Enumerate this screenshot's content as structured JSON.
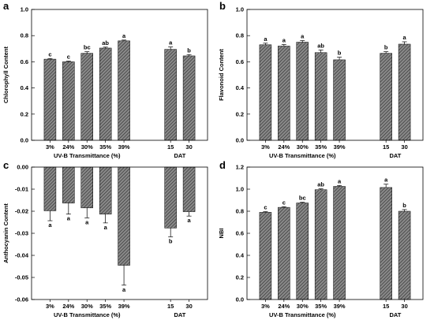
{
  "chart_data": [
    {
      "panel": "a",
      "type": "bar",
      "categories": [
        "3%",
        "24%",
        "30%",
        "35%",
        "39%",
        "15",
        "30"
      ],
      "values": [
        0.62,
        0.6,
        0.665,
        0.705,
        0.76,
        0.695,
        0.645
      ],
      "errors": [
        0.005,
        0.005,
        0.012,
        0.007,
        0.006,
        0.018,
        0.01
      ],
      "letters": [
        "c",
        "c",
        "bc",
        "ab",
        "a",
        "a",
        "b"
      ],
      "ylabel": "Chlorophyll Content",
      "ylim": [
        0.0,
        1.0
      ],
      "yticks": [
        "0.0",
        "0.2",
        "0.4",
        "0.6",
        "0.8",
        "1.0"
      ],
      "ytick_values": [
        0,
        0.2,
        0.4,
        0.6,
        0.8,
        1.0
      ],
      "xgroup_labels": [
        "UV-B Transmittance (%)",
        "DAT"
      ]
    },
    {
      "panel": "b",
      "type": "bar",
      "categories": [
        "3%",
        "24%",
        "30%",
        "35%",
        "39%",
        "15",
        "30"
      ],
      "values": [
        0.73,
        0.72,
        0.75,
        0.67,
        0.615,
        0.665,
        0.735
      ],
      "errors": [
        0.012,
        0.012,
        0.012,
        0.02,
        0.02,
        0.012,
        0.018
      ],
      "letters": [
        "a",
        "a",
        "a",
        "ab",
        "b",
        "b",
        "a"
      ],
      "ylabel": "Flavonoid Content",
      "ylim": [
        0.0,
        1.0
      ],
      "yticks": [
        "0.0",
        "0.2",
        "0.4",
        "0.6",
        "0.8",
        "1.0"
      ],
      "ytick_values": [
        0,
        0.2,
        0.4,
        0.6,
        0.8,
        1.0
      ],
      "xgroup_labels": [
        "UV-B Transmittance (%)",
        "DAT"
      ]
    },
    {
      "panel": "c",
      "type": "bar",
      "categories": [
        "3%",
        "24%",
        "30%",
        "35%",
        "39%",
        "15",
        "30"
      ],
      "values": [
        -0.0198,
        -0.0163,
        -0.0185,
        -0.0213,
        -0.0445,
        -0.0276,
        -0.0202
      ],
      "errors": [
        0.0045,
        0.005,
        0.0045,
        0.004,
        0.009,
        0.004,
        0.002
      ],
      "letters": [
        "a",
        "a",
        "a",
        "a",
        "a",
        "b",
        "a"
      ],
      "ylabel": "Anthocyanin Content",
      "ylim": [
        -0.06,
        0.0
      ],
      "yticks": [
        "0.00",
        "-0.01",
        "-0.02",
        "-0.03",
        "-0.04",
        "-0.05",
        "-0.06"
      ],
      "ytick_values": [
        0,
        -0.01,
        -0.02,
        -0.03,
        -0.04,
        -0.05,
        -0.06
      ],
      "xgroup_labels": [
        "UV-B Transmittance (%)",
        "DAT"
      ]
    },
    {
      "panel": "d",
      "type": "bar",
      "categories": [
        "3%",
        "24%",
        "30%",
        "35%",
        "39%",
        "15",
        "30"
      ],
      "values": [
        0.79,
        0.835,
        0.875,
        0.995,
        1.025,
        1.015,
        0.8
      ],
      "errors": [
        0.006,
        0.006,
        0.006,
        0.008,
        0.008,
        0.03,
        0.015
      ],
      "letters": [
        "c",
        "c",
        "bc",
        "ab",
        "a",
        "a",
        "b"
      ],
      "ylabel": "NBI",
      "ylim": [
        0.0,
        1.2
      ],
      "yticks": [
        "0.0",
        "0.2",
        "0.4",
        "0.6",
        "0.8",
        "1.0",
        "1.2"
      ],
      "ytick_values": [
        0,
        0.2,
        0.4,
        0.6,
        0.8,
        1.0,
        1.2
      ],
      "xgroup_labels": [
        "UV-B Transmittance (%)",
        "DAT"
      ]
    }
  ],
  "colors": {
    "bar_fill": "#7a7a7a",
    "bar_hatch": "#3a3a3a",
    "axis": "#000000"
  }
}
